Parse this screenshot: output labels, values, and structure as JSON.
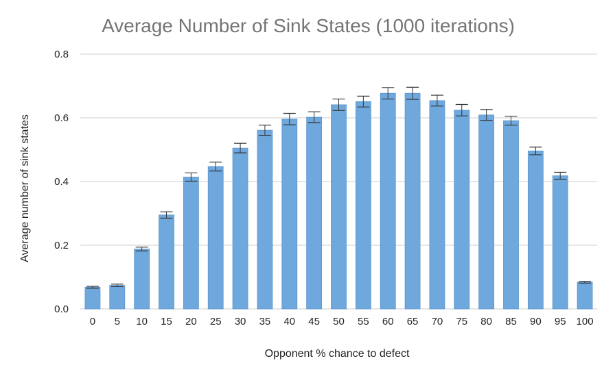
{
  "chart_data": {
    "type": "bar",
    "title": "Average Number of Sink States (1000 iterations)",
    "xlabel": "Opponent % chance to defect",
    "ylabel": "Average number of sink states",
    "ylim": [
      0,
      0.8
    ],
    "yticks": [
      "0.0",
      "0.2",
      "0.4",
      "0.6",
      "0.8"
    ],
    "grid": true,
    "error_bars": true,
    "categories": [
      "0",
      "5",
      "10",
      "15",
      "20",
      "25",
      "30",
      "35",
      "40",
      "45",
      "50",
      "55",
      "60",
      "65",
      "70",
      "75",
      "80",
      "85",
      "90",
      "95",
      "100"
    ],
    "values": [
      0.068,
      0.074,
      0.188,
      0.295,
      0.414,
      0.447,
      0.505,
      0.561,
      0.596,
      0.602,
      0.641,
      0.651,
      0.677,
      0.677,
      0.654,
      0.624,
      0.609,
      0.591,
      0.496,
      0.418,
      0.084
    ],
    "errors": [
      0.003,
      0.004,
      0.006,
      0.01,
      0.013,
      0.014,
      0.015,
      0.016,
      0.018,
      0.017,
      0.018,
      0.017,
      0.018,
      0.019,
      0.017,
      0.018,
      0.017,
      0.014,
      0.012,
      0.011,
      0.003
    ],
    "colors": {
      "bar": "#6fa8dc",
      "bar_edge": "#5b95cc",
      "error_bar": "#333333",
      "grid": "#cccccc",
      "title": "#757575"
    }
  }
}
